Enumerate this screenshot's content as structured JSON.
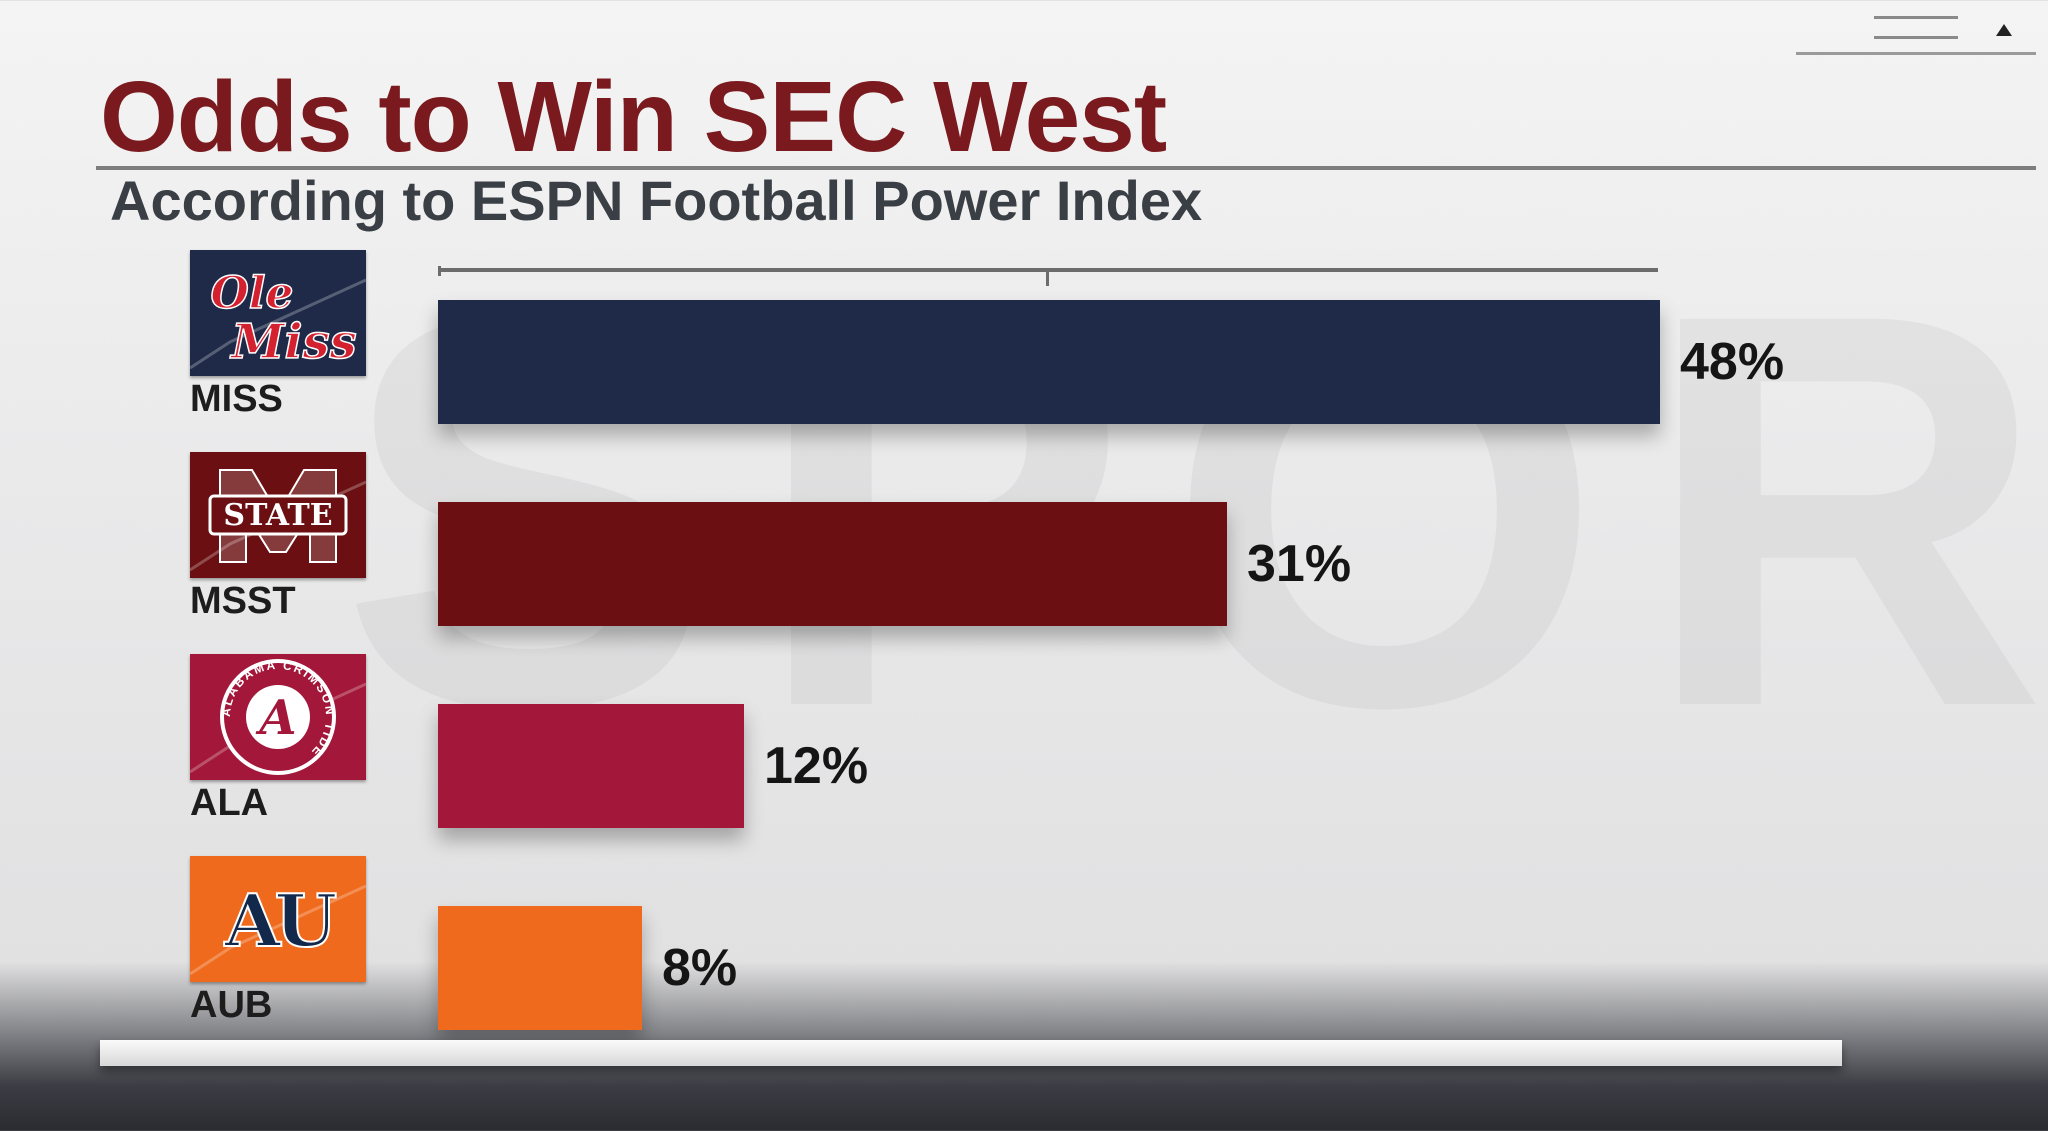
{
  "title": "Odds to Win SEC West",
  "subtitle": "According to ESPN Football Power Index",
  "chart_data": {
    "type": "bar",
    "orientation": "horizontal",
    "title": "Odds to Win SEC West",
    "subtitle": "According to ESPN Football Power Index",
    "categories": [
      "MISS",
      "MSST",
      "ALA",
      "AUB"
    ],
    "values": [
      48,
      31,
      12,
      8
    ],
    "value_labels": [
      "48%",
      "31%",
      "12%",
      "8%"
    ],
    "bar_colors": [
      "#1f2a48",
      "#6b0f12",
      "#a3173a",
      "#ef6a1c"
    ],
    "logos": [
      {
        "icon": "ole-miss-logo",
        "text": "Ole Miss",
        "bg": "#1f2a48",
        "fg": "#d4212f"
      },
      {
        "icon": "mississippi-state-logo",
        "text": "STATE",
        "bg": "#6b0f12",
        "fg": "#ffffff"
      },
      {
        "icon": "alabama-logo",
        "text": "ALABAMA CRIMSON TIDE",
        "letter": "A",
        "bg": "#a3173a",
        "fg": "#ffffff"
      },
      {
        "icon": "auburn-logo",
        "text": "AU",
        "bg": "#ef6a1c",
        "fg": "#13294b"
      }
    ],
    "xlim": [
      0,
      48
    ],
    "grid": false,
    "legend": "none"
  }
}
